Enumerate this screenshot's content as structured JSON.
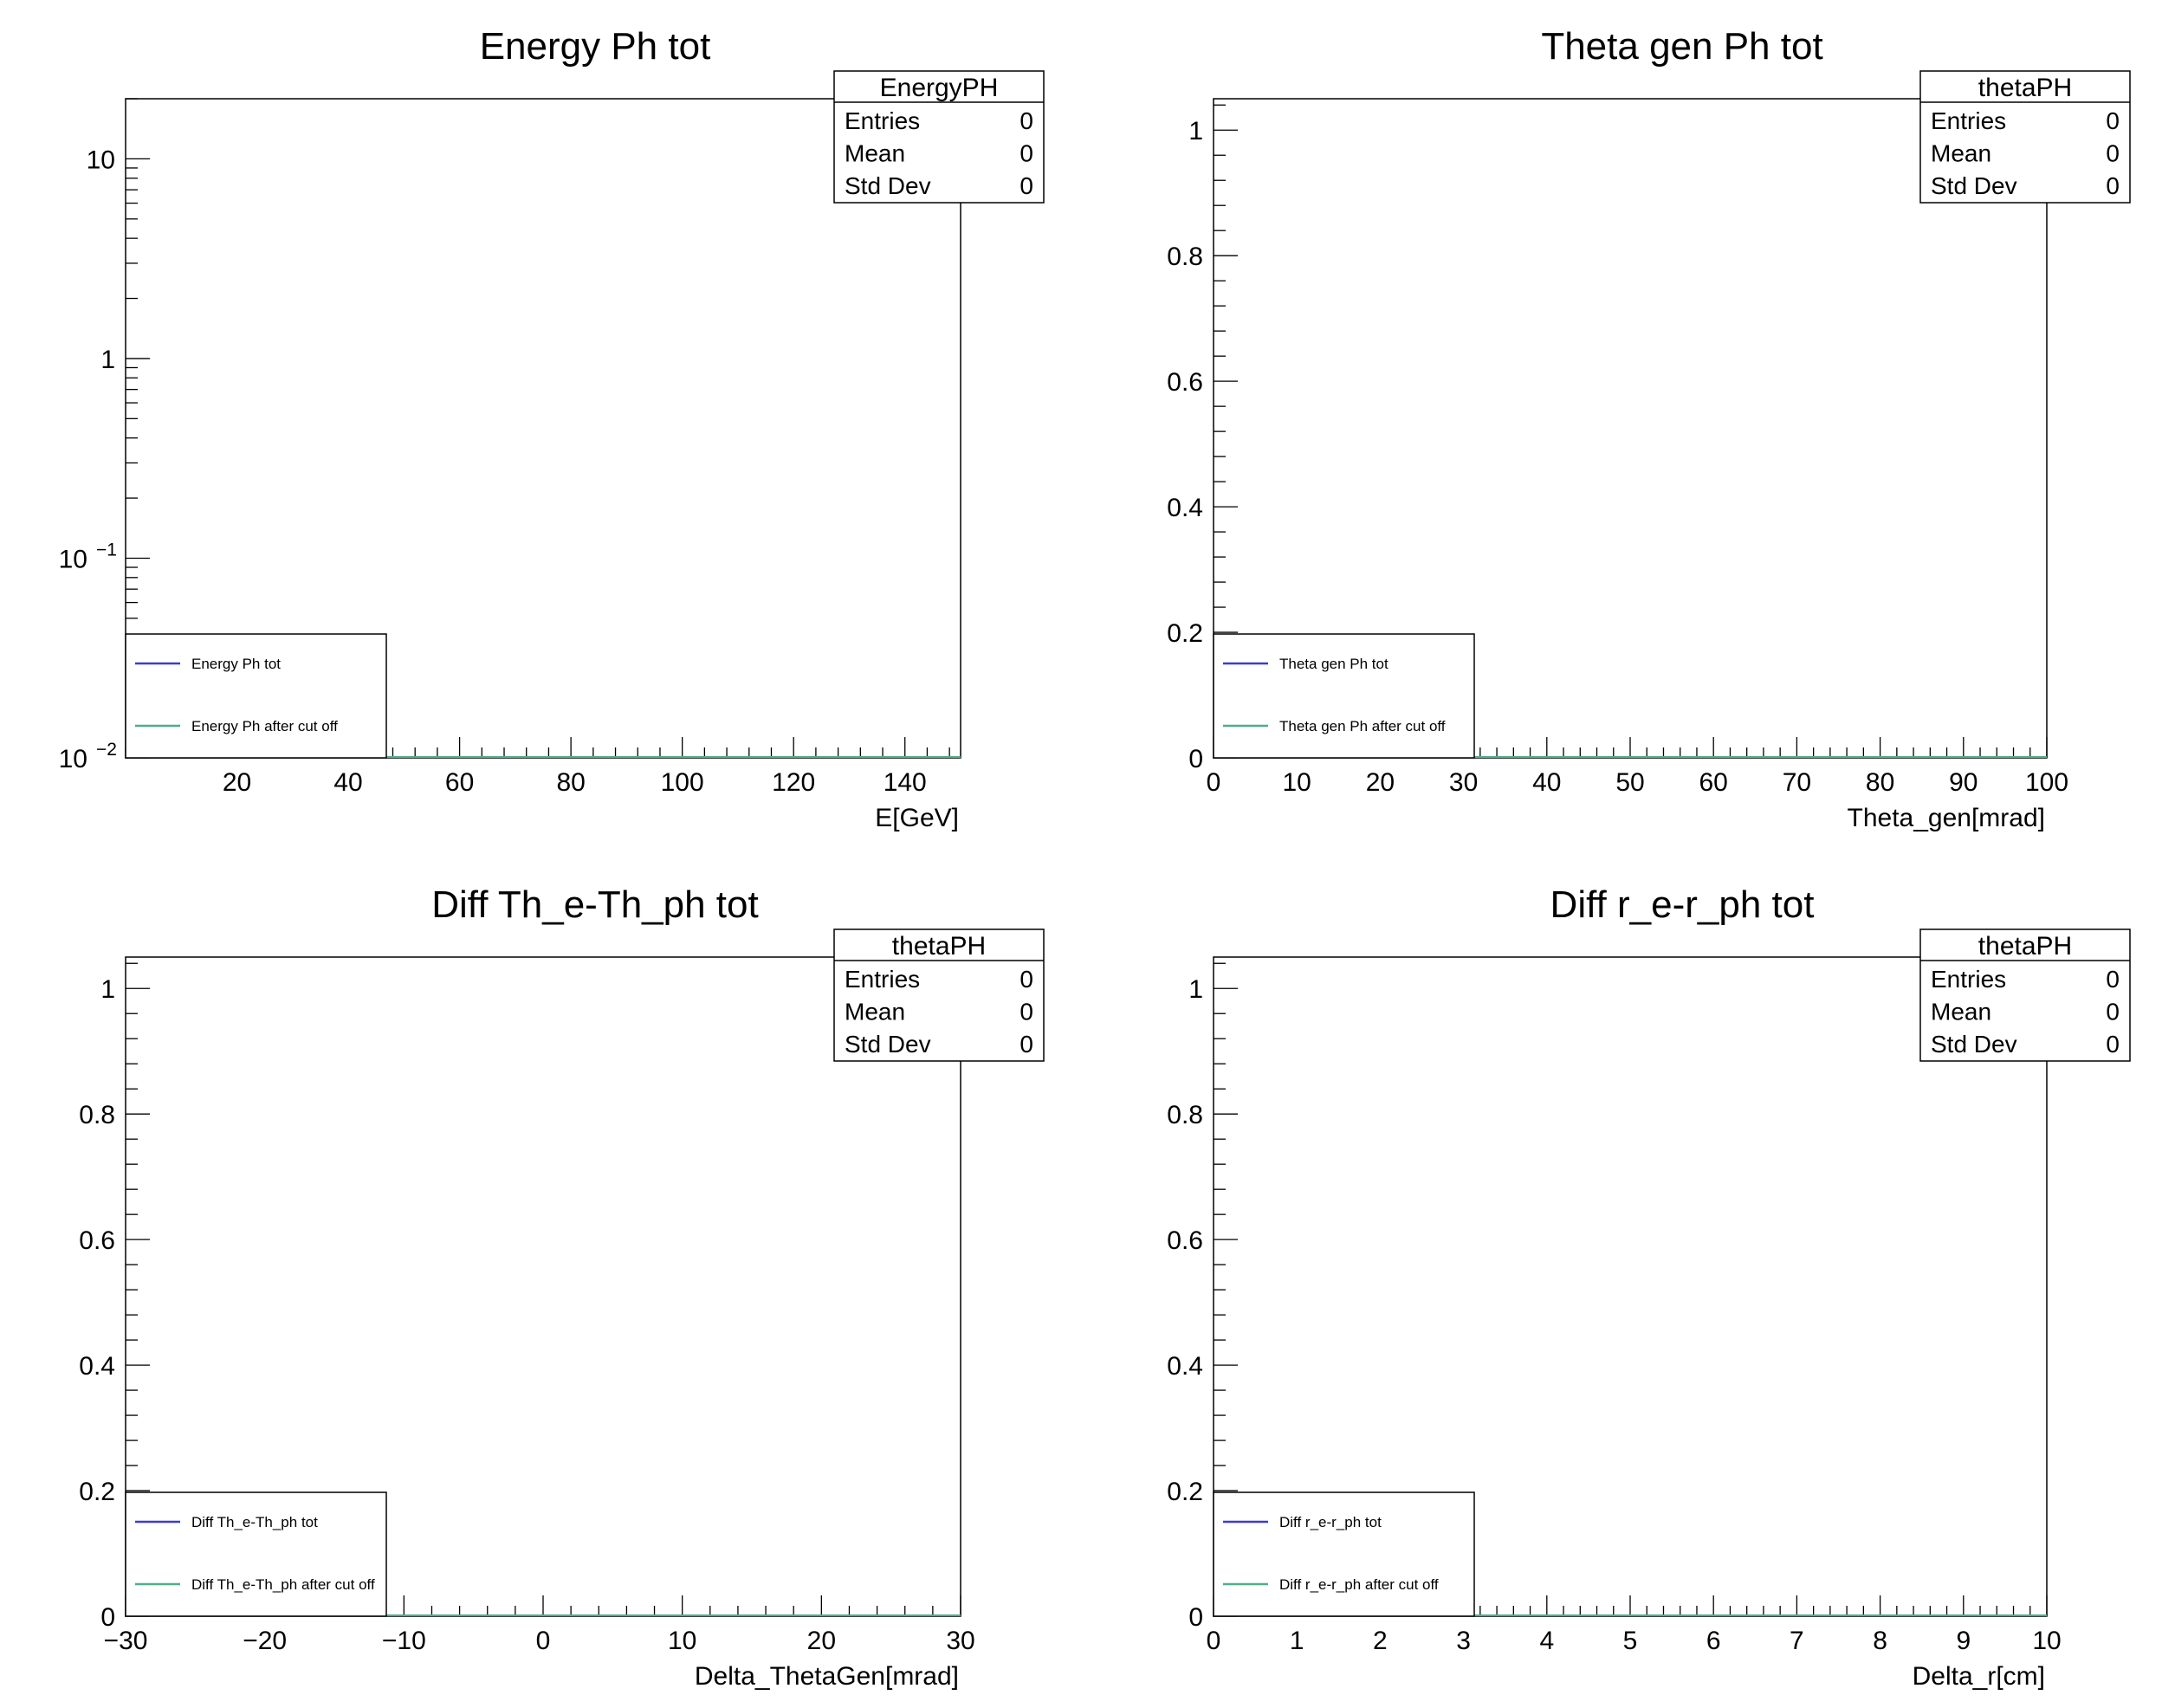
{
  "colors": {
    "series_tot": "#3b3bd4",
    "series_cut": "#4fae88",
    "frame": "#000000"
  },
  "chart_data": [
    {
      "type": "histogram",
      "title": "Energy Ph tot",
      "xlabel": "E[GeV]",
      "ylabel": "",
      "xlim": [
        0,
        150
      ],
      "ylim": [
        0.01,
        20
      ],
      "yscale": "log",
      "xticks": [
        20,
        40,
        60,
        80,
        100,
        120,
        140
      ],
      "yticks": [
        {
          "v": 10,
          "label": "10"
        },
        {
          "v": 1,
          "label": "1"
        },
        {
          "v": 0.1,
          "label": "10",
          "sup": "−1"
        },
        {
          "v": 0.01,
          "label": "10",
          "sup": "−2"
        }
      ],
      "stats": {
        "name": "EnergyPH",
        "rows": [
          {
            "label": "Entries",
            "value": "0"
          },
          {
            "label": "Mean",
            "value": "0"
          },
          {
            "label": "Std Dev",
            "value": "0"
          }
        ]
      },
      "legend": [
        "Energy Ph tot",
        "Energy Ph after cut off"
      ],
      "series": [
        {
          "name": "Energy Ph tot",
          "values": []
        },
        {
          "name": "Energy Ph after cut off",
          "values": []
        }
      ]
    },
    {
      "type": "histogram",
      "title": "Theta gen Ph tot",
      "xlabel": "Theta_gen[mrad]",
      "ylabel": "",
      "xlim": [
        0,
        100
      ],
      "ylim": [
        0,
        1.05
      ],
      "yscale": "linear",
      "xticks": [
        0,
        10,
        20,
        30,
        40,
        50,
        60,
        70,
        80,
        90,
        100
      ],
      "yticks": [
        {
          "v": 0,
          "label": "0"
        },
        {
          "v": 0.2,
          "label": "0.2"
        },
        {
          "v": 0.4,
          "label": "0.4"
        },
        {
          "v": 0.6,
          "label": "0.6"
        },
        {
          "v": 0.8,
          "label": "0.8"
        },
        {
          "v": 1,
          "label": "1"
        }
      ],
      "stats": {
        "name": "thetaPH",
        "rows": [
          {
            "label": "Entries",
            "value": "0"
          },
          {
            "label": "Mean",
            "value": "0"
          },
          {
            "label": "Std Dev",
            "value": "0"
          }
        ]
      },
      "legend": [
        "Theta gen Ph tot",
        "Theta gen Ph after cut off"
      ],
      "series": [
        {
          "name": "Theta gen Ph tot",
          "values": []
        },
        {
          "name": "Theta gen Ph after cut off",
          "values": []
        }
      ]
    },
    {
      "type": "histogram",
      "title": "Diff Th_e-Th_ph tot",
      "xlabel": "Delta_ThetaGen[mrad]",
      "ylabel": "",
      "xlim": [
        -30,
        30
      ],
      "ylim": [
        0,
        1.05
      ],
      "yscale": "linear",
      "xticks": [
        -30,
        -20,
        -10,
        0,
        10,
        20,
        30
      ],
      "yticks": [
        {
          "v": 0,
          "label": "0"
        },
        {
          "v": 0.2,
          "label": "0.2"
        },
        {
          "v": 0.4,
          "label": "0.4"
        },
        {
          "v": 0.6,
          "label": "0.6"
        },
        {
          "v": 0.8,
          "label": "0.8"
        },
        {
          "v": 1,
          "label": "1"
        }
      ],
      "stats": {
        "name": "thetaPH",
        "rows": [
          {
            "label": "Entries",
            "value": "0"
          },
          {
            "label": "Mean",
            "value": "0"
          },
          {
            "label": "Std Dev",
            "value": "0"
          }
        ]
      },
      "legend": [
        "Diff Th_e-Th_ph tot",
        "Diff Th_e-Th_ph after cut off"
      ],
      "series": [
        {
          "name": "Diff Th_e-Th_ph tot",
          "values": []
        },
        {
          "name": "Diff Th_e-Th_ph after cut off",
          "values": []
        }
      ]
    },
    {
      "type": "histogram",
      "title": "Diff r_e-r_ph tot",
      "xlabel": "Delta_r[cm]",
      "ylabel": "",
      "xlim": [
        0,
        10
      ],
      "ylim": [
        0,
        1.05
      ],
      "yscale": "linear",
      "xticks": [
        0,
        1,
        2,
        3,
        4,
        5,
        6,
        7,
        8,
        9,
        10
      ],
      "yticks": [
        {
          "v": 0,
          "label": "0"
        },
        {
          "v": 0.2,
          "label": "0.2"
        },
        {
          "v": 0.4,
          "label": "0.4"
        },
        {
          "v": 0.6,
          "label": "0.6"
        },
        {
          "v": 0.8,
          "label": "0.8"
        },
        {
          "v": 1,
          "label": "1"
        }
      ],
      "stats": {
        "name": "thetaPH",
        "rows": [
          {
            "label": "Entries",
            "value": "0"
          },
          {
            "label": "Mean",
            "value": "0"
          },
          {
            "label": "Std Dev",
            "value": "0"
          }
        ]
      },
      "legend": [
        "Diff r_e-r_ph tot",
        "Diff r_e-r_ph after cut off"
      ],
      "series": [
        {
          "name": "Diff r_e-r_ph tot",
          "values": []
        },
        {
          "name": "Diff r_e-r_ph after cut off",
          "values": []
        }
      ]
    }
  ]
}
